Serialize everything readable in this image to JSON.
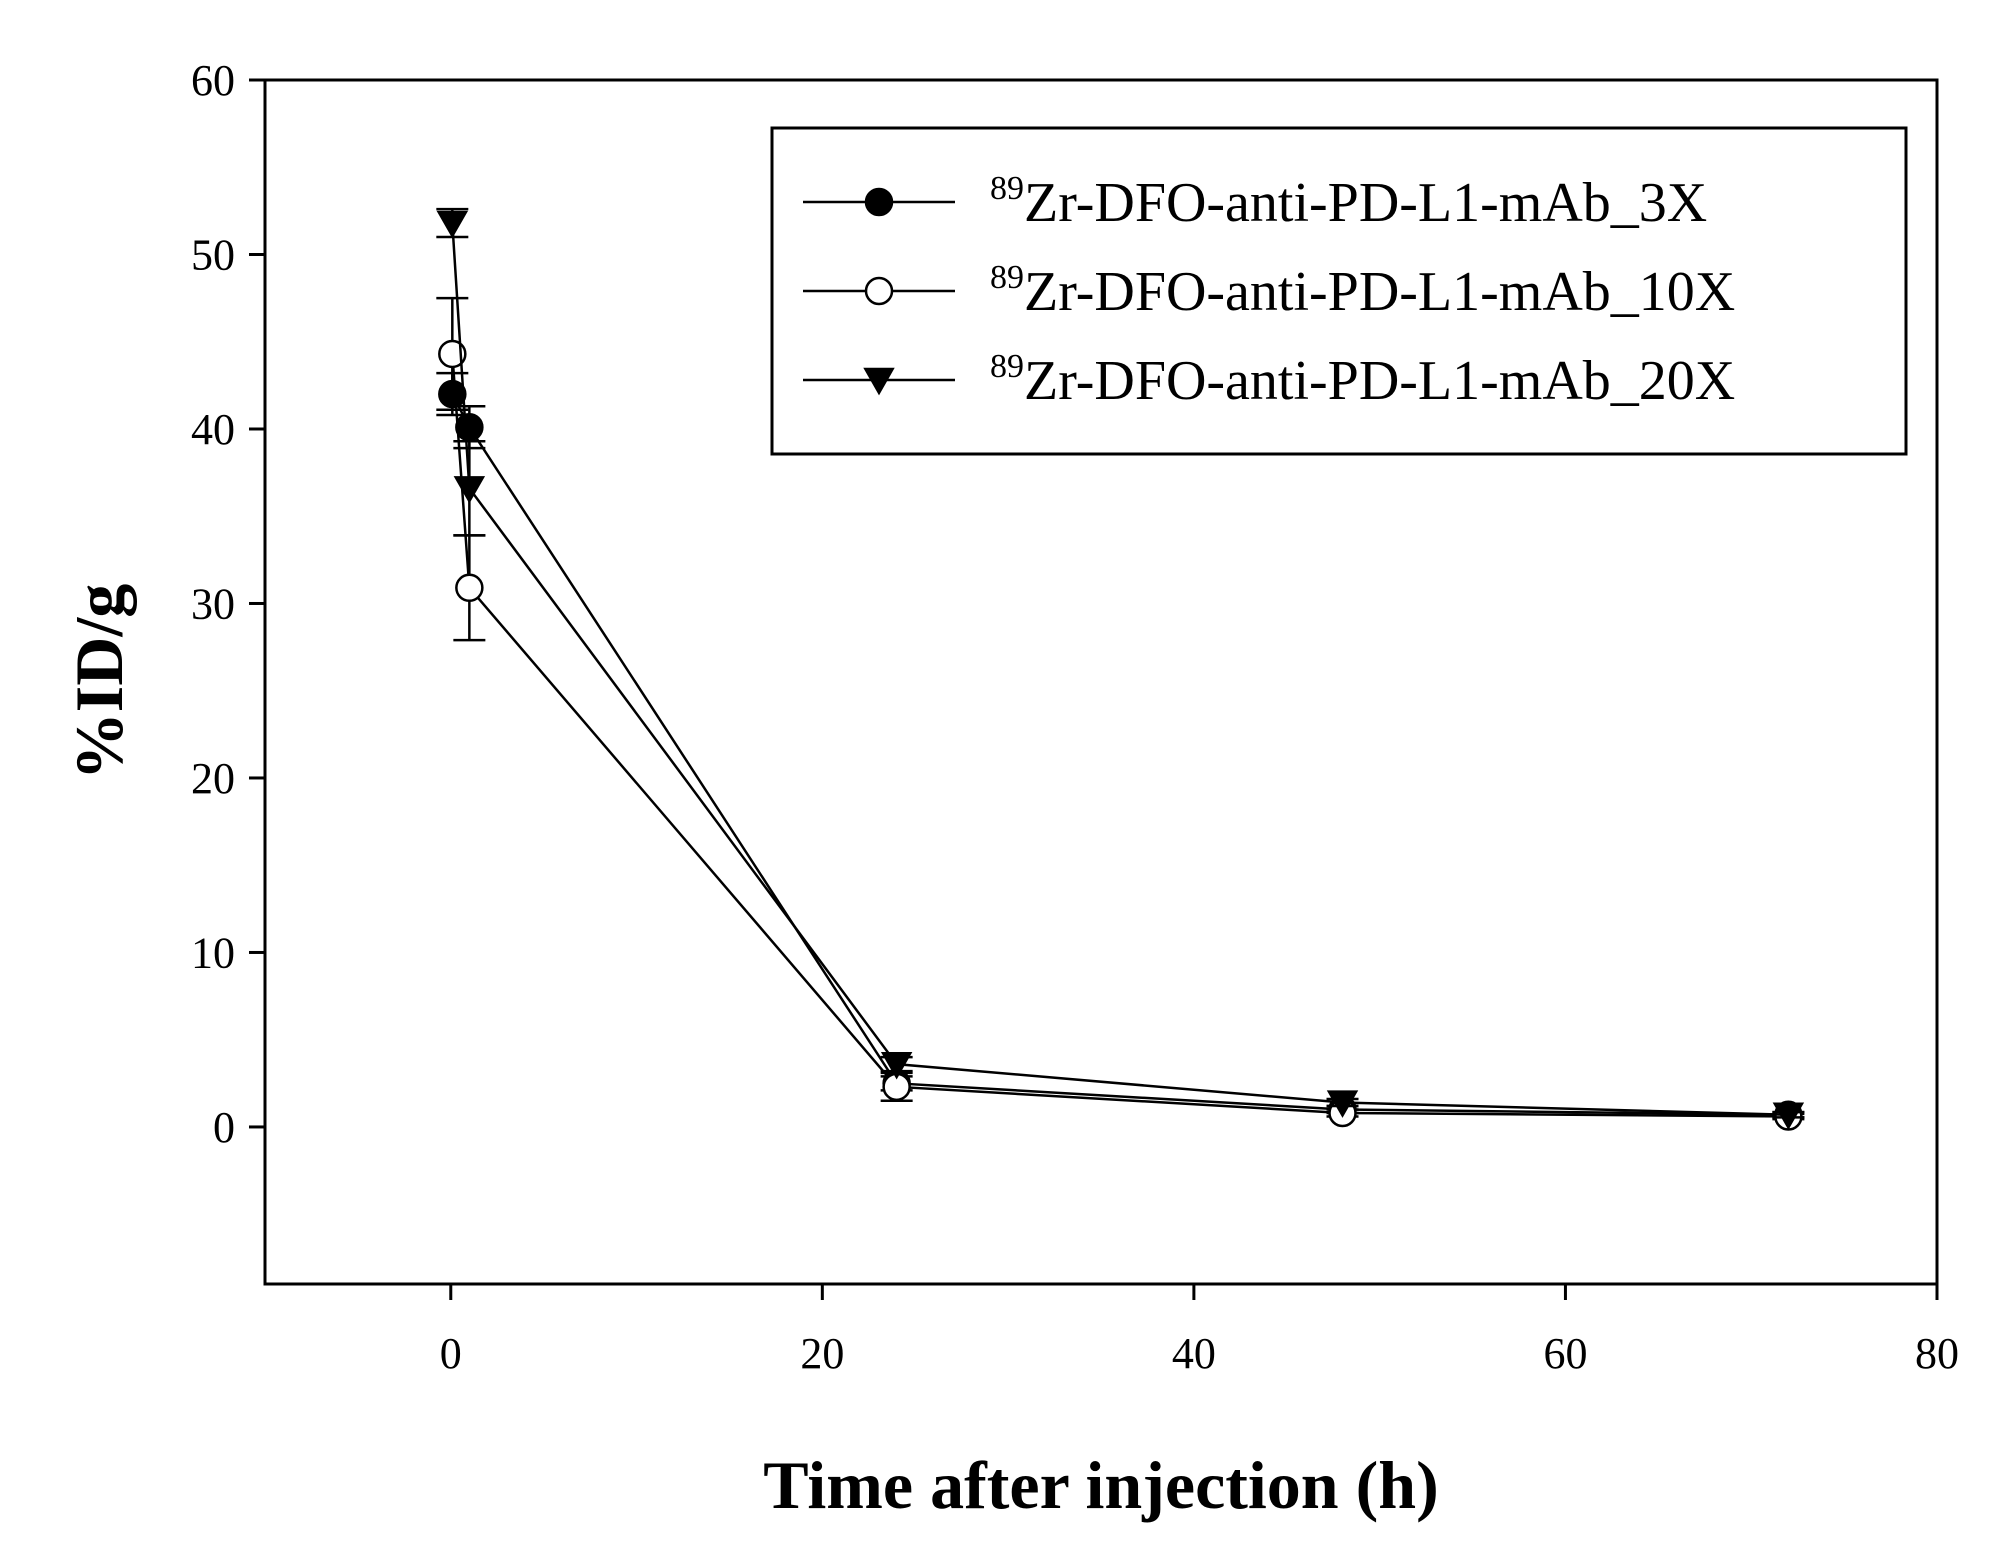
{
  "chart_data": {
    "type": "line",
    "title": "",
    "xlabel": "Time after injection (h)",
    "ylabel": "%ID/g",
    "xlim": [
      -10,
      80
    ],
    "ylim": [
      -9,
      60
    ],
    "xticks": [
      0,
      20,
      40,
      60,
      80
    ],
    "yticks": [
      0,
      10,
      20,
      30,
      40,
      50,
      60
    ],
    "legend_position": "top-right",
    "series": [
      {
        "name": "Zr-DFO-anti-PD-L1-mAb_3X",
        "isotope": "89",
        "marker": "filled-circle",
        "x": [
          0.083,
          1,
          24,
          48,
          72
        ],
        "y": [
          42.0,
          40.1,
          2.5,
          1.0,
          0.7
        ],
        "err": [
          1.2,
          1.2,
          0.4,
          0.2,
          0.15
        ]
      },
      {
        "name": "Zr-DFO-anti-PD-L1-mAb_10X",
        "isotope": "89",
        "marker": "open-circle",
        "x": [
          0.083,
          1,
          24,
          48,
          72
        ],
        "y": [
          44.3,
          30.9,
          2.3,
          0.8,
          0.6
        ],
        "err": [
          3.2,
          3.0,
          0.8,
          0.2,
          0.15
        ]
      },
      {
        "name": "Zr-DFO-anti-PD-L1-mAb_20X",
        "isotope": "89",
        "marker": "filled-triangle-down",
        "x": [
          0.083,
          1,
          24,
          48,
          72
        ],
        "y": [
          51.8,
          36.6,
          3.6,
          1.4,
          0.7
        ],
        "err": [
          0.8,
          2.7,
          0.4,
          0.2,
          0.15
        ]
      }
    ]
  }
}
